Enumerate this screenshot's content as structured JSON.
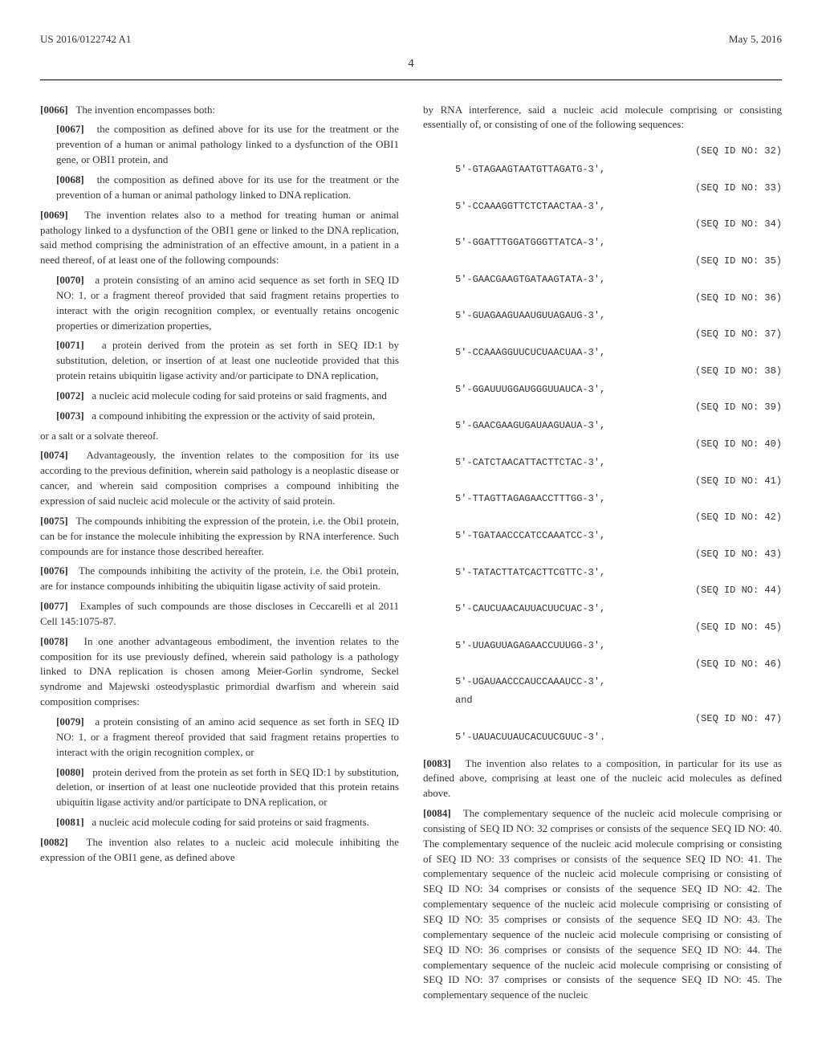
{
  "header": {
    "pub_number": "US 2016/0122742 A1",
    "pub_date": "May 5, 2016",
    "page_number": "4"
  },
  "left_col": {
    "p0066_num": "[0066]",
    "p0066": "The invention encompasses both:",
    "p0067_num": "[0067]",
    "p0067": "the composition as defined above for its use for the treatment or the prevention of a human or animal pathology linked to a dysfunction of the OBI1 gene, or OBI1 protein, and",
    "p0068_num": "[0068]",
    "p0068": "the composition as defined above for its use for the treatment or the prevention of a human or animal pathology linked to DNA replication.",
    "p0069_num": "[0069]",
    "p0069": "The invention relates also to a method for treating human or animal pathology linked to a dysfunction of the OBI1 gene or linked to the DNA replication, said method comprising the administration of an effective amount, in a patient in a need thereof, of at least one of the following compounds:",
    "p0070_num": "[0070]",
    "p0070": "a protein consisting of an amino acid sequence as set forth in SEQ ID NO: 1, or a fragment thereof provided that said fragment retains properties to interact with the origin recognition complex, or eventually retains oncogenic properties or dimerization properties,",
    "p0071_num": "[0071]",
    "p0071": "a protein derived from the protein as set forth in SEQ ID:1 by substitution, deletion, or insertion of at least one nucleotide provided that this protein retains ubiquitin ligase activity and/or participate to DNA replication,",
    "p0072_num": "[0072]",
    "p0072": "a nucleic acid molecule coding for said proteins or said fragments, and",
    "p0073_num": "[0073]",
    "p0073": "a compound inhibiting the expression or the activity of said protein,",
    "p0073_tail": "or a salt or a solvate thereof.",
    "p0074_num": "[0074]",
    "p0074": "Advantageously, the invention relates to the composition for its use according to the previous definition, wherein said pathology is a neoplastic disease or cancer, and wherein said composition comprises a compound inhibiting the expression of said nucleic acid molecule or the activity of said protein.",
    "p0075_num": "[0075]",
    "p0075": "The compounds inhibiting the expression of the protein, i.e. the Obi1 protein, can be for instance the molecule inhibiting the expression by RNA interference. Such compounds are for instance those described hereafter.",
    "p0076_num": "[0076]",
    "p0076": "The compounds inhibiting the activity of the protein, i.e. the Obi1 protein, are for instance compounds inhibiting the ubiquitin ligase activity of said protein.",
    "p0077_num": "[0077]",
    "p0077": "Examples of such compounds are those discloses in Ceccarelli et al 2011 Cell 145:1075-87.",
    "p0078_num": "[0078]",
    "p0078": "In one another advantageous embodiment, the invention relates to the composition for its use previously defined, wherein said pathology is a pathology linked to DNA replication is chosen among Meier-Gorlin syndrome, Seckel syndrome and Majewski osteodysplastic primordial dwarfism and wherein said composition comprises:",
    "p0079_num": "[0079]",
    "p0079": "a protein consisting of an amino acid sequence as set forth in SEQ ID NO: 1, or a fragment thereof provided that said fragment retains properties to interact with the origin recognition complex, or",
    "p0080_num": "[0080]",
    "p0080": "protein derived from the protein as set forth in SEQ ID:1 by substitution, deletion, or insertion of at least one nucleotide provided that this protein retains ubiquitin ligase activity and/or participate to DNA replication, or",
    "p0081_num": "[0081]",
    "p0081": "a nucleic acid molecule coding for said proteins or said fragments.",
    "p0082_num": "[0082]",
    "p0082": "The invention also relates to a nucleic acid molecule inhibiting the expression of the OBI1 gene, as defined above"
  },
  "right_col": {
    "intro": "by RNA interference, said a nucleic acid molecule comprising or consisting essentially of, or consisting of one of the following sequences:",
    "sequences": [
      {
        "seq": "5'-GTAGAAGTAATGTTAGATG-3',",
        "label": "(SEQ ID NO: 32)"
      },
      {
        "seq": "5'-CCAAAGGTTCTCTAACTAA-3',",
        "label": "(SEQ ID NO: 33)"
      },
      {
        "seq": "5'-GGATTTGGATGGGTTATCA-3',",
        "label": "(SEQ ID NO: 34)"
      },
      {
        "seq": "5'-GAACGAAGTGATAAGTATA-3',",
        "label": "(SEQ ID NO: 35)"
      },
      {
        "seq": "5'-GUAGAAGUAAUGUUAGAUG-3',",
        "label": "(SEQ ID NO: 36)"
      },
      {
        "seq": "5'-CCAAAGGUUCUCUAACUAA-3',",
        "label": "(SEQ ID NO: 37)"
      },
      {
        "seq": "5'-GGAUUUGGAUGGGUUAUCA-3',",
        "label": "(SEQ ID NO: 38)"
      },
      {
        "seq": "5'-GAACGAAGUGAUAAGUAUA-3',",
        "label": "(SEQ ID NO: 39)"
      },
      {
        "seq": "5'-CATCTAACATTACTTCTAC-3',",
        "label": "(SEQ ID NO: 40)"
      },
      {
        "seq": "5'-TTAGTTAGAGAACCTTTGG-3',",
        "label": "(SEQ ID NO: 41)"
      },
      {
        "seq": "5'-TGATAACCCATCCAAATCC-3',",
        "label": "(SEQ ID NO: 42)"
      },
      {
        "seq": "5'-TATACTTATCACTTCGTTC-3',",
        "label": "(SEQ ID NO: 43)"
      },
      {
        "seq": "5'-CAUCUAACAUUACUUCUAC-3',",
        "label": "(SEQ ID NO: 44)"
      },
      {
        "seq": "5'-UUAGUUAGAGAACCUUUGG-3',",
        "label": "(SEQ ID NO: 45)"
      },
      {
        "seq": "5'-UGAUAACCCAUCCAAAUCC-3',\nand",
        "label": "(SEQ ID NO: 46)"
      },
      {
        "seq": "5'-UAUACUUAUCACUUCGUUC-3'.",
        "label": "(SEQ ID NO: 47)"
      }
    ],
    "p0083_num": "[0083]",
    "p0083": "The invention also relates to a composition, in particular for its use as defined above, comprising at least one of the nucleic acid molecules as defined above.",
    "p0084_num": "[0084]",
    "p0084": "The complementary sequence of the nucleic acid molecule comprising or consisting of SEQ ID NO: 32 comprises or consists of the sequence SEQ ID NO: 40. The complementary sequence of the nucleic acid molecule comprising or consisting of SEQ ID NO: 33 comprises or consists of the sequence SEQ ID NO: 41. The complementary sequence of the nucleic acid molecule comprising or consisting of SEQ ID NO: 34 comprises or consists of the sequence SEQ ID NO: 42. The complementary sequence of the nucleic acid molecule comprising or consisting of SEQ ID NO: 35 comprises or consists of the sequence SEQ ID NO: 43. The complementary sequence of the nucleic acid molecule comprising or consisting of SEQ ID NO: 36 comprises or consists of the sequence SEQ ID NO: 44. The complementary sequence of the nucleic acid molecule comprising or consisting of SEQ ID NO: 37 comprises or consists of the sequence SEQ ID NO: 45. The complementary sequence of the nucleic"
  }
}
